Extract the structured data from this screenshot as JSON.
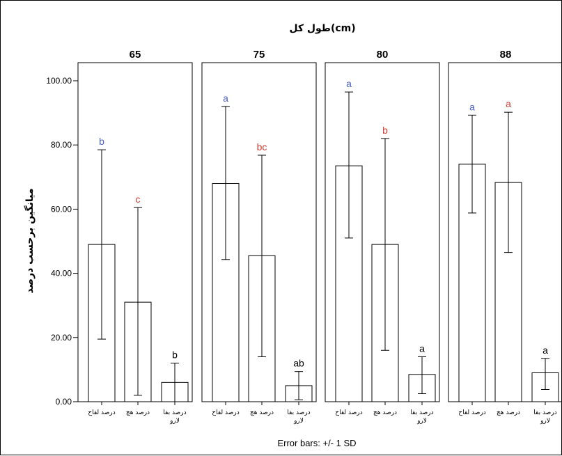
{
  "chart_data": {
    "type": "bar",
    "title": "طول کل(cm)",
    "ylabel": "میانگین برحسب درصد",
    "footnote": "Error bars: +/- 1 SD",
    "ylim": [
      0,
      110
    ],
    "yticks": [
      0,
      20,
      40,
      60,
      80,
      100
    ],
    "ytick_labels": [
      "0.00",
      "20.00",
      "40.00",
      "60.00",
      "80.00",
      "100.00"
    ],
    "grid": false,
    "categories": [
      "درصد لقاح",
      "درصد هچ",
      "درصد بقا لارو"
    ],
    "category_lines": [
      [
        "درصد لقاح"
      ],
      [
        "درصد هچ"
      ],
      [
        "درصد بقا",
        "لارو"
      ]
    ],
    "panels": [
      {
        "label": "65",
        "means": [
          49,
          31,
          6
        ],
        "sd_low": [
          19.5,
          2,
          0
        ],
        "sd_high": [
          78.5,
          60.5,
          12
        ],
        "letters": [
          "b",
          "c",
          "b"
        ],
        "letter_colors": [
          "#4a62c9",
          "#d23b2f",
          "#000000"
        ]
      },
      {
        "label": "75",
        "means": [
          68,
          45.5,
          5
        ],
        "sd_low": [
          44.3,
          14,
          0.6
        ],
        "sd_high": [
          92,
          76.8,
          9.4
        ],
        "letters": [
          "a",
          "bc",
          "ab"
        ],
        "letter_colors": [
          "#4a62c9",
          "#d23b2f",
          "#000000"
        ]
      },
      {
        "label": "80",
        "means": [
          73.5,
          49,
          8.5
        ],
        "sd_low": [
          51,
          16,
          2.5
        ],
        "sd_high": [
          96.5,
          82,
          14
        ],
        "letters": [
          "a",
          "b",
          "a"
        ],
        "letter_colors": [
          "#4a62c9",
          "#d23b2f",
          "#000000"
        ]
      },
      {
        "label": "88",
        "means": [
          74,
          68.3,
          9
        ],
        "sd_low": [
          58.8,
          46.5,
          3.8
        ],
        "sd_high": [
          89.3,
          90.2,
          13.5
        ],
        "letters": [
          "a",
          "a",
          "a"
        ],
        "letter_colors": [
          "#4a62c9",
          "#d23b2f",
          "#000000"
        ]
      }
    ]
  }
}
